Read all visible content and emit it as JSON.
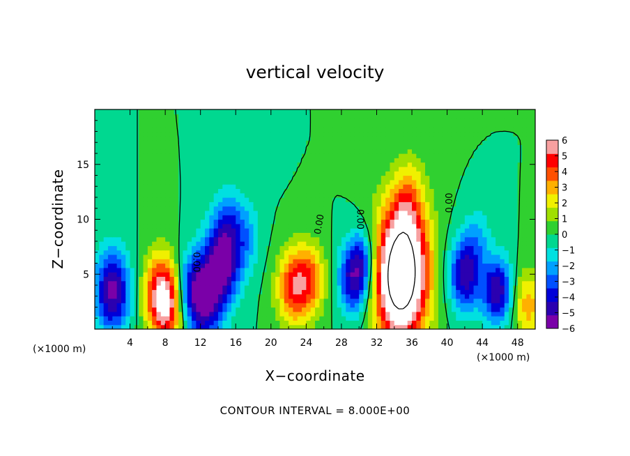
{
  "chart_data": {
    "type": "heatmap",
    "title": "vertical velocity",
    "xlabel": "X−coordinate",
    "ylabel": "Z−coordinate",
    "x_unit": "(×1000 m)",
    "footer": "CONTOUR INTERVAL = 8.000E+00",
    "xlim": [
      0,
      50
    ],
    "ylim": [
      0,
      20
    ],
    "x_ticks": [
      4,
      8,
      12,
      16,
      20,
      24,
      28,
      32,
      36,
      40,
      44,
      48
    ],
    "y_ticks": [
      5,
      10,
      15
    ],
    "colorbar": {
      "ticks": [
        6,
        5,
        4,
        3,
        2,
        1,
        0,
        -1,
        -2,
        -3,
        -4,
        -5,
        -6
      ],
      "range": [
        -6,
        6
      ],
      "colors": [
        "#7a00a8",
        "#2b00b0",
        "#0000d8",
        "#0050ff",
        "#00a0ff",
        "#00e0e0",
        "#00d890",
        "#30d030",
        "#a0e000",
        "#f0f000",
        "#ffb000",
        "#ff5000",
        "#ff0000",
        "#f8a0a0",
        "#ffffff"
      ]
    },
    "contour_labels": [
      {
        "text": "0.00",
        "x": 25.8,
        "y": 9.5,
        "rotation": -80
      },
      {
        "text": "0.00",
        "x": 29.8,
        "y": 10.0,
        "rotation": 90
      },
      {
        "text": "0.00",
        "x": 40.6,
        "y": 11.5,
        "rotation": -90
      },
      {
        "text": "0.00",
        "x": 11.2,
        "y": 6.1,
        "rotation": 90
      }
    ],
    "features": [
      {
        "x": 35.0,
        "z": 6.0,
        "w": 6.5,
        "shape": 2.0
      },
      {
        "x": 34.5,
        "z": 3.5,
        "w": 4.5,
        "shape": 2.0
      },
      {
        "x": 35.5,
        "z": 11.5,
        "w": 1.9,
        "shape": 0.8
      },
      {
        "x": 36.0,
        "z": 14.5,
        "w": 0.5,
        "shape": 0.5
      },
      {
        "x": 22.5,
        "z": 3.8,
        "w": 4.3,
        "shape": 0.9
      },
      {
        "x": 24.5,
        "z": 4.6,
        "w": 3.2,
        "shape": 0.8
      },
      {
        "x": 7.5,
        "z": 3.5,
        "w": 4.5,
        "shape": 1.0
      },
      {
        "x": 8.2,
        "z": 1.8,
        "w": 3.5,
        "shape": 0.8
      },
      {
        "x": 2.0,
        "z": 3.5,
        "w": -5.5,
        "shape": 1.0
      },
      {
        "x": 14.5,
        "z": 6.2,
        "w": -5.8,
        "shape": 1.0
      },
      {
        "x": 12.5,
        "z": 2.3,
        "w": -4.5,
        "shape": 1.0
      },
      {
        "x": 11.0,
        "z": 4.0,
        "w": -3.0,
        "shape": 0.8
      },
      {
        "x": 17.0,
        "z": 8.5,
        "w": -2.0,
        "shape": 0.8
      },
      {
        "x": 15.0,
        "z": 10.5,
        "w": -1.6,
        "shape": 0.6
      },
      {
        "x": 29.5,
        "z": 4.6,
        "w": -5.0,
        "shape": 0.8
      },
      {
        "x": 30.5,
        "z": 6.8,
        "w": -2.2,
        "shape": 0.5
      },
      {
        "x": 42.0,
        "z": 5.0,
        "w": -5.0,
        "shape": 0.8
      },
      {
        "x": 45.7,
        "z": 3.5,
        "w": -5.0,
        "shape": 0.7
      },
      {
        "x": 43.5,
        "z": 8.5,
        "w": -1.5,
        "shape": 0.5
      },
      {
        "x": 49.2,
        "z": 2.2,
        "w": 3.0,
        "shape": 0.8
      },
      {
        "x": 19.0,
        "z": 16.0,
        "w": -0.6,
        "shape": 0.5
      }
    ]
  }
}
